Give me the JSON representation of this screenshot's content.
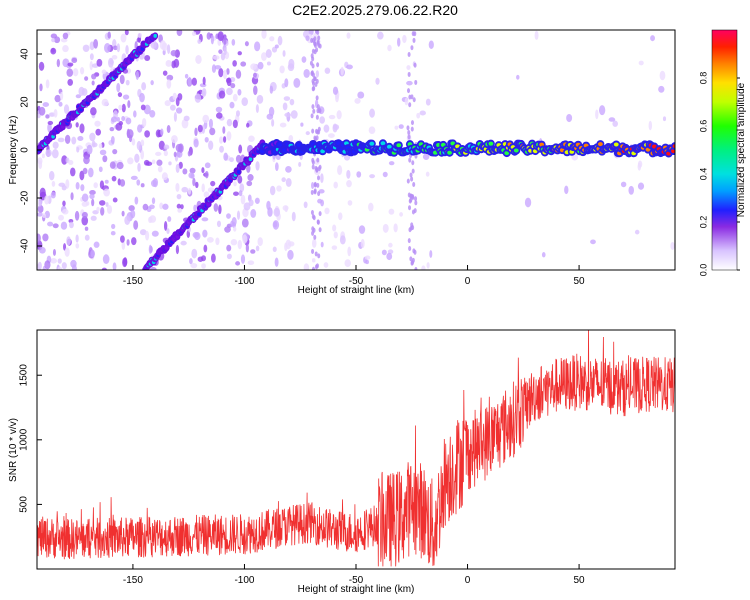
{
  "title": "C2E2.2025.279.06.22.R20",
  "colors": {
    "snr_line": "#f03030",
    "spectrogram_low": "#e6d6ff",
    "spectrogram_mid": "#7a10e8",
    "spectrogram_high": "#ff2020"
  },
  "chart_data": [
    {
      "type": "heatmap",
      "xlabel": "Height of straight line (km)",
      "ylabel": "Frequency (Hz)",
      "xlim": [
        -193,
        93
      ],
      "ylim": [
        -50,
        50
      ],
      "xticks": [
        -150,
        -100,
        -50,
        0,
        50
      ],
      "yticks": [
        -40,
        -20,
        0,
        20,
        40
      ],
      "ridges": [
        {
          "x": [
            -193,
            -140
          ],
          "y": [
            0,
            48
          ]
        },
        {
          "x": [
            -145,
            -92
          ],
          "y": [
            -50,
            2
          ]
        },
        {
          "x": [
            -92,
            93
          ],
          "y": [
            1,
            0.5
          ]
        }
      ],
      "colorbar": {
        "label": "Normalized spectral amplitude",
        "range": [
          0.0,
          1.0
        ],
        "ticks": [
          0.0,
          0.2,
          0.4,
          0.6,
          0.8
        ],
        "tick_labels": [
          "0.0",
          "0.2",
          "0.4",
          "0.6",
          "0.8"
        ]
      }
    },
    {
      "type": "line",
      "xlabel": "Height of straight line (km)",
      "ylabel": "SNR (10 * v/v)",
      "xlim": [
        -193,
        93
      ],
      "ylim": [
        0,
        1850
      ],
      "xticks": [
        -150,
        -100,
        -50,
        0,
        50
      ],
      "yticks": [
        500,
        1000,
        1500
      ],
      "series": [
        {
          "x": [
            -193,
            -180,
            -160,
            -140,
            -120,
            -100,
            -90,
            -80,
            -70,
            -60,
            -50,
            -40,
            -30,
            -25,
            -20,
            -15,
            -10,
            -5,
            0,
            10,
            20,
            30,
            40,
            50,
            60,
            70,
            80,
            93
          ],
          "y": [
            250,
            230,
            240,
            250,
            260,
            270,
            300,
            340,
            360,
            300,
            280,
            350,
            400,
            500,
            450,
            300,
            700,
            800,
            900,
            1000,
            1150,
            1350,
            1420,
            1450,
            1420,
            1400,
            1430,
            1420
          ]
        }
      ]
    }
  ]
}
